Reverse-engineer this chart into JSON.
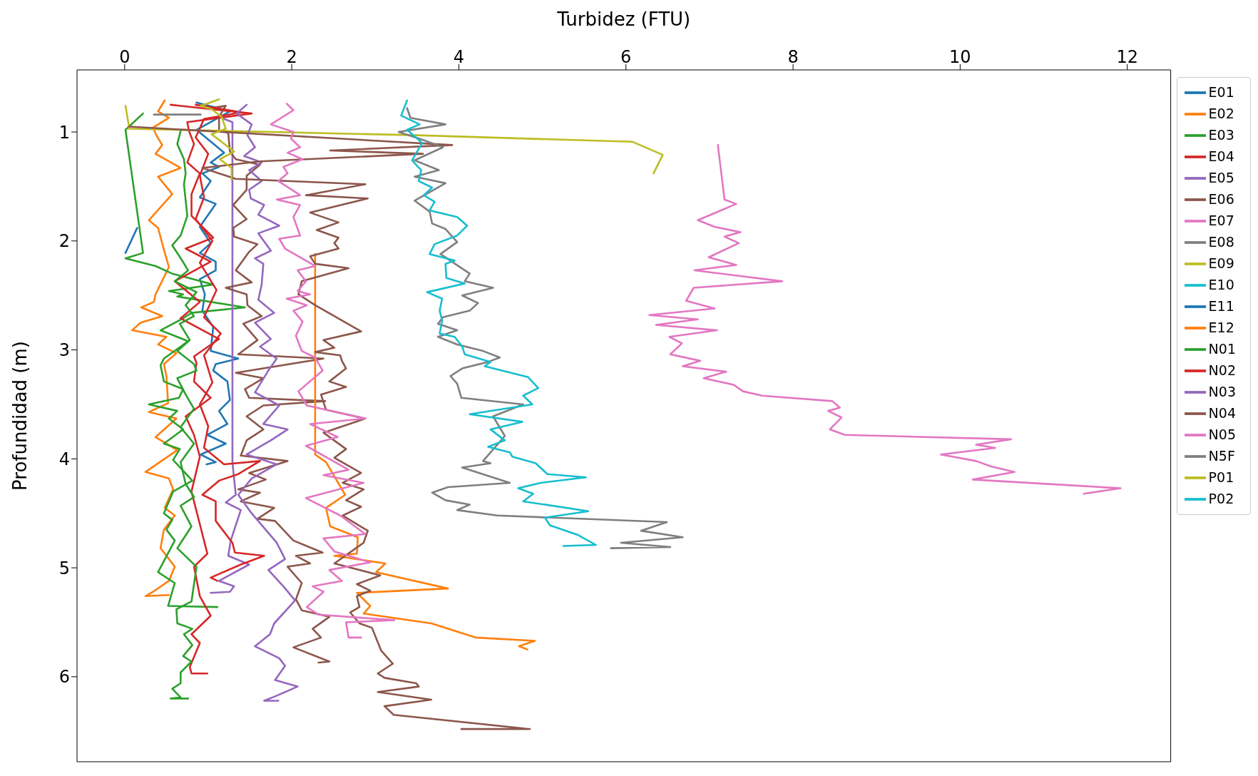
{
  "chart_data": {
    "type": "line",
    "xlabel": "Turbidez (FTU)",
    "ylabel": "Profundidad (m)",
    "xlim": [
      -0.57,
      12.52
    ],
    "xticks": [
      0,
      2,
      4,
      6,
      8,
      10,
      12
    ],
    "ylim": [
      6.78,
      0.43
    ],
    "yticks": [
      1,
      2,
      3,
      4,
      5,
      6
    ],
    "grid": false,
    "legend": "top right",
    "marker": "none",
    "line_style": "solid",
    "series": [
      {
        "name": "E01",
        "color": "#1f77b4",
        "x": [
          0.86,
          1.26,
          0.86,
          1.19,
          1.03,
          1.13,
          0.93,
          1.03,
          0.9,
          1.09,
          0.9,
          1.03,
          0.9,
          1.09,
          1.09,
          0.9,
          0.96,
          0.93,
          1.06,
          1.03,
          1.36,
          1.09,
          1.06,
          1.23,
          1.26,
          1.13,
          1.23,
          0.99,
          1.21,
          0.91,
          1.09,
          0.98
        ],
        "values": [
          0.73,
          0.81,
          0.98,
          1.19,
          1.28,
          1.32,
          1.38,
          1.45,
          1.6,
          1.66,
          1.87,
          2.02,
          2.11,
          2.19,
          2.27,
          2.35,
          2.49,
          2.64,
          2.79,
          3.01,
          3.08,
          3.13,
          3.19,
          3.29,
          3.46,
          3.56,
          3.68,
          3.78,
          3.86,
          3.96,
          4.03,
          4.05
        ]
      },
      {
        "name": "E02",
        "color": "#ff7f0e",
        "x": [
          0.48,
          0.4,
          0.53,
          0.34,
          0.38,
          0.45,
          0.37,
          0.67,
          0.4,
          0.57,
          0.29,
          0.4,
          0.47,
          0.53,
          0.37,
          0.35,
          0.2,
          0.45,
          0.19,
          0.09,
          0.5,
          0.4,
          0.62,
          0.47,
          0.5,
          0.52,
          0.29,
          0.62,
          0.37,
          0.63,
          0.25,
          0.53,
          0.58,
          0.48,
          0.6,
          0.47,
          0.43,
          0.6,
          0.53,
          0.34,
          0.25,
          0.53
        ],
        "values": [
          0.71,
          0.81,
          0.87,
          0.96,
          1.03,
          1.12,
          1.2,
          1.33,
          1.41,
          1.57,
          1.81,
          1.88,
          2.08,
          2.24,
          2.49,
          2.56,
          2.61,
          2.69,
          2.75,
          2.82,
          2.88,
          2.95,
          3.03,
          3.13,
          3.24,
          3.49,
          3.57,
          3.63,
          3.8,
          3.92,
          4.12,
          4.18,
          4.28,
          4.45,
          4.52,
          4.65,
          4.82,
          4.99,
          5.12,
          5.22,
          5.26,
          5.25
        ]
      },
      {
        "name": "E03",
        "color": "#2ca02c",
        "x": [
          0.22,
          0.01,
          0.22,
          0.01,
          0.37,
          0.57,
          1.06,
          0.53,
          0.7,
          0.63,
          1.44,
          0.8,
          0.7,
          0.43,
          0.76,
          0.47,
          0.43,
          0.47,
          0.7,
          0.65,
          0.29,
          0.63,
          0.53,
          0.7,
          0.47,
          0.66,
          0.58,
          0.81,
          0.58,
          0.47,
          0.57,
          0.5,
          0.6,
          0.4,
          0.6,
          0.52,
          1.11
        ],
        "values": [
          0.83,
          0.98,
          2.11,
          2.16,
          2.23,
          2.3,
          2.4,
          2.46,
          2.49,
          2.51,
          2.61,
          2.66,
          2.71,
          2.82,
          2.92,
          3.08,
          3.14,
          3.29,
          3.36,
          3.44,
          3.5,
          3.56,
          3.63,
          3.73,
          3.86,
          3.91,
          4.01,
          4.2,
          4.3,
          4.5,
          4.56,
          4.65,
          4.75,
          5.04,
          5.14,
          5.35,
          5.36
        ]
      },
      {
        "name": "E04",
        "color": "#d62728",
        "x": [
          0.55,
          1.52,
          0.75,
          0.77,
          0.83,
          0.75,
          0.9,
          0.8,
          0.8,
          1.06,
          0.73,
          1.03,
          0.6,
          0.9,
          0.67,
          1.13,
          0.83,
          0.86,
          0.83,
          1.03,
          0.73,
          0.83,
          0.9,
          0.8,
          0.9,
          0.99,
          0.83,
          0.9,
          1.03,
          0.8,
          0.9,
          0.78,
          0.8,
          0.99
        ],
        "values": [
          0.75,
          0.83,
          0.91,
          0.99,
          1.11,
          1.28,
          1.38,
          1.57,
          1.77,
          1.97,
          2.07,
          2.19,
          2.37,
          2.56,
          2.71,
          2.9,
          3.06,
          3.12,
          3.29,
          3.44,
          3.61,
          3.78,
          3.98,
          4.3,
          4.6,
          4.87,
          4.99,
          5.26,
          5.44,
          5.61,
          5.69,
          5.91,
          5.97,
          5.97
        ]
      },
      {
        "name": "E05",
        "color": "#9467bd",
        "x": [
          1.19,
          1.29,
          1.29,
          1.29,
          1.33,
          1.21,
          1.39,
          1.27,
          1.24,
          1.49,
          1.13,
          1.31,
          1.26,
          1.03
        ],
        "values": [
          0.88,
          0.91,
          3.23,
          4.03,
          4.33,
          4.4,
          4.47,
          4.75,
          4.89,
          4.97,
          5.12,
          5.17,
          5.22,
          5.23
        ]
      },
      {
        "name": "E06",
        "color": "#8c564b",
        "x": [
          1.03,
          1.21,
          1.13,
          1.13,
          1.24,
          1.26,
          1.33,
          1.62,
          1.46,
          1.46,
          1.3,
          1.46,
          1.3,
          1.31,
          1.59,
          1.49,
          1.33,
          1.52,
          1.21,
          1.46,
          1.47,
          1.64,
          1.42,
          1.59,
          1.36,
          2.38,
          1.33,
          1.66,
          1.44,
          1.49,
          2.4,
          1.66,
          1.46,
          1.66,
          1.46,
          1.39,
          1.95,
          1.49,
          1.69,
          1.36,
          1.62,
          1.39,
          1.79,
          1.59,
          1.8,
          2.02,
          2.37,
          2.05,
          2.22,
          1.95,
          2.12,
          2.05,
          2.12,
          2.45,
          2.25,
          2.35,
          2.02,
          2.45,
          2.32
        ],
        "values": [
          0.78,
          0.76,
          0.86,
          0.98,
          1.01,
          1.18,
          1.25,
          1.3,
          1.4,
          1.53,
          1.67,
          1.8,
          1.88,
          1.96,
          2.03,
          2.1,
          2.27,
          2.38,
          2.43,
          2.49,
          2.59,
          2.69,
          2.76,
          2.91,
          3.04,
          3.08,
          3.21,
          3.26,
          3.36,
          3.44,
          3.47,
          3.51,
          3.61,
          3.73,
          3.83,
          3.97,
          4.02,
          4.13,
          4.19,
          4.28,
          4.31,
          4.39,
          4.45,
          4.55,
          4.57,
          4.75,
          4.86,
          4.89,
          4.96,
          4.99,
          5.14,
          5.29,
          5.39,
          5.45,
          5.56,
          5.64,
          5.73,
          5.86,
          5.87
        ]
      },
      {
        "name": "E07",
        "color": "#e377c2",
        "x": [
          7.1,
          7.18,
          7.32,
          6.86,
          7.06,
          7.37,
          7.18,
          7.35,
          6.99,
          7.32,
          6.82,
          7.87,
          6.81,
          6.72,
          7.06,
          6.28,
          6.86,
          6.36,
          7.09,
          6.52,
          6.67,
          6.53,
          6.89,
          6.68,
          7.2,
          6.93,
          7.29,
          7.4,
          7.63,
          8.47,
          8.56,
          8.42,
          8.58,
          8.44,
          8.62,
          10.61,
          10.19,
          10.42,
          9.77,
          10.19,
          10.37,
          10.65,
          10.15,
          11.92,
          11.48
        ],
        "values": [
          1.12,
          1.62,
          1.66,
          1.81,
          1.87,
          1.92,
          1.96,
          2.02,
          2.15,
          2.22,
          2.27,
          2.37,
          2.43,
          2.55,
          2.62,
          2.68,
          2.72,
          2.77,
          2.82,
          2.88,
          2.94,
          3.04,
          3.1,
          3.15,
          3.2,
          3.26,
          3.32,
          3.38,
          3.42,
          3.47,
          3.53,
          3.56,
          3.62,
          3.73,
          3.78,
          3.82,
          3.87,
          3.9,
          3.96,
          4.02,
          4.07,
          4.12,
          4.19,
          4.27,
          4.32
        ]
      },
      {
        "name": "E08",
        "color": "#7f7f7f",
        "x": [
          0.35,
          0.91
        ],
        "values": [
          0.84,
          0.84
        ]
      },
      {
        "name": "E09",
        "color": "#bcbd22",
        "x": [
          0.01,
          0.05,
          0.05,
          3.5,
          6.08,
          6.44,
          6.33
        ],
        "values": [
          0.76,
          0.94,
          0.97,
          1.03,
          1.09,
          1.21,
          1.38
        ]
      },
      {
        "name": "E10",
        "color": "#17becf"
      },
      {
        "name": "E11",
        "color": "#1f77b4",
        "x": [
          0.15,
          0.01
        ],
        "values": [
          1.88,
          2.11
        ]
      },
      {
        "name": "E12",
        "color": "#ff7f0e",
        "x": [
          2.28,
          2.28,
          2.41,
          2.64,
          2.41,
          2.46,
          2.79,
          2.78,
          2.51,
          3.12,
          3.01,
          3.87,
          2.78,
          2.94,
          2.86,
          3.67,
          4.2,
          4.91,
          4.72,
          4.82
        ],
        "values": [
          2.12,
          3.96,
          4.03,
          4.33,
          4.45,
          4.62,
          4.72,
          4.87,
          4.89,
          4.96,
          5.04,
          5.19,
          5.23,
          5.35,
          5.42,
          5.51,
          5.64,
          5.67,
          5.72,
          5.75
        ]
      },
      {
        "name": "N01",
        "color": "#2ca02c",
        "x": [
          0.67,
          0.63,
          0.71,
          0.73,
          0.71,
          0.75,
          0.67,
          0.57,
          0.68,
          0.76,
          0.6,
          0.86,
          0.73,
          0.83,
          0.66,
          0.78,
          0.63,
          0.83,
          0.86,
          0.63,
          0.73,
          0.83,
          0.67,
          0.83,
          0.67,
          0.73,
          0.83,
          0.67,
          0.8,
          0.63,
          0.86,
          0.8,
          0.62,
          0.63,
          0.81,
          0.71,
          0.81,
          0.7,
          0.8,
          0.67,
          0.67,
          0.57,
          0.67,
          0.55,
          0.76
        ],
        "values": [
          0.99,
          1.11,
          1.25,
          1.38,
          1.48,
          1.77,
          1.95,
          2.04,
          2.17,
          2.27,
          2.37,
          2.47,
          2.59,
          2.69,
          2.76,
          2.91,
          3.01,
          3.13,
          3.19,
          3.26,
          3.41,
          3.54,
          3.71,
          3.86,
          4.03,
          4.23,
          4.35,
          4.43,
          4.62,
          4.82,
          4.99,
          5.31,
          5.38,
          5.51,
          5.56,
          5.61,
          5.71,
          5.81,
          5.86,
          5.96,
          6.06,
          6.11,
          6.19,
          6.2,
          6.2
        ]
      },
      {
        "name": "N02",
        "color": "#d62728",
        "x": [
          0.85,
          1.4,
          0.95,
          0.85,
          1.0,
          0.9,
          0.95,
          0.85,
          1.05,
          0.9,
          1.1,
          0.95,
          1.15,
          0.95,
          1.05,
          0.9,
          1.0,
          0.95,
          1.19,
          1.62,
          1.36,
          1.13,
          0.93,
          1.09,
          1.09,
          1.29,
          1.32,
          1.67,
          1.39,
          1.03,
          1.11
        ],
        "values": [
          0.75,
          0.82,
          0.88,
          1.05,
          1.2,
          1.4,
          1.6,
          1.8,
          2.0,
          2.2,
          2.45,
          2.7,
          2.85,
          3.05,
          3.3,
          3.5,
          3.7,
          3.9,
          4.05,
          4.02,
          4.14,
          4.2,
          4.33,
          4.39,
          4.57,
          4.77,
          4.86,
          4.89,
          4.97,
          5.09,
          5.12
        ]
      },
      {
        "name": "N03",
        "color": "#9467bd",
        "x": [
          1.46,
          1.34,
          1.52,
          1.47,
          1.56,
          1.43,
          1.64,
          1.49,
          1.64,
          1.49,
          1.51,
          1.67,
          1.6,
          1.85,
          1.6,
          1.75,
          1.56,
          1.66,
          1.64,
          1.6,
          1.79,
          1.56,
          1.75,
          1.62,
          1.82,
          1.72,
          1.56,
          1.85,
          1.66,
          1.95,
          1.75,
          1.46,
          1.82,
          1.52,
          1.36,
          1.52,
          1.82,
          1.92,
          1.72,
          1.9,
          2.04,
          1.79,
          1.74,
          1.56,
          1.85,
          1.92,
          1.8,
          2.07,
          1.8,
          1.67,
          1.84
        ],
        "values": [
          0.75,
          0.83,
          0.93,
          1.03,
          1.14,
          1.22,
          1.28,
          1.35,
          1.45,
          1.53,
          1.61,
          1.67,
          1.76,
          1.86,
          1.93,
          2.09,
          2.16,
          2.21,
          2.4,
          2.54,
          2.66,
          2.75,
          2.9,
          2.97,
          3.08,
          3.19,
          3.39,
          3.51,
          3.68,
          3.73,
          3.83,
          3.96,
          4.05,
          4.18,
          4.33,
          4.5,
          4.77,
          4.92,
          5.02,
          5.17,
          5.3,
          5.51,
          5.61,
          5.72,
          5.83,
          5.9,
          6.03,
          6.09,
          6.18,
          6.22,
          6.22
        ]
      },
      {
        "name": "N04",
        "color": "#8c564b",
        "x": [
          0.05,
          3.92,
          2.46,
          3.57,
          1.62,
          0.93,
          1.33,
          2.88,
          2.17,
          2.91,
          2.22,
          2.56,
          2.3,
          2.56,
          2.51,
          2.56,
          2.22,
          2.28,
          2.68,
          2.12,
          2.08,
          2.28,
          2.83,
          2.38,
          2.51,
          2.28,
          2.58,
          2.6,
          2.65,
          2.45,
          2.65,
          2.35,
          2.41,
          2.88,
          2.38,
          2.65,
          2.51,
          2.83,
          2.61,
          2.86,
          2.65,
          2.83,
          2.61,
          2.91,
          2.86,
          2.51,
          3.06,
          2.78,
          2.94,
          2.78,
          2.81,
          2.7,
          2.81,
          2.96,
          3.07,
          3.21,
          3.03,
          3.11,
          3.49,
          3.52,
          3.03,
          3.67,
          3.11,
          3.22,
          4.85,
          4.03
        ],
        "values": [
          0.95,
          1.12,
          1.17,
          1.2,
          1.27,
          1.33,
          1.43,
          1.48,
          1.58,
          1.61,
          1.74,
          1.83,
          1.9,
          1.97,
          2.02,
          2.07,
          2.14,
          2.21,
          2.25,
          2.37,
          2.49,
          2.59,
          2.83,
          2.91,
          2.98,
          3.02,
          3.05,
          3.1,
          3.17,
          3.29,
          3.34,
          3.41,
          3.55,
          3.63,
          3.76,
          3.91,
          3.99,
          4.13,
          4.22,
          4.28,
          4.38,
          4.44,
          4.52,
          4.66,
          4.77,
          4.96,
          5.07,
          5.15,
          5.21,
          5.26,
          5.36,
          5.41,
          5.51,
          5.55,
          5.76,
          5.88,
          5.97,
          6.01,
          6.06,
          6.09,
          6.14,
          6.21,
          6.27,
          6.35,
          6.48,
          6.48
        ]
      },
      {
        "name": "N05",
        "color": "#e377c2",
        "x": [
          1.94,
          2.02,
          1.75,
          2.02,
          1.99,
          2.1,
          1.95,
          2.13,
          1.9,
          1.95,
          1.84,
          2.1,
          1.82,
          2.1,
          2.02,
          2.1,
          1.85,
          1.92,
          2.28,
          2.07,
          2.17,
          2.07,
          2.22,
          1.94,
          2.18,
          2.02,
          2.13,
          2.05,
          2.12,
          2.28,
          2.37,
          2.08,
          2.18,
          2.88,
          2.22,
          2.55,
          2.17,
          2.68,
          2.38,
          2.86,
          2.17,
          2.58,
          2.88,
          2.38,
          2.51,
          2.94,
          2.45,
          2.6,
          2.25,
          2.38,
          2.18,
          2.32,
          3.23,
          2.65,
          2.68,
          2.83
        ],
        "values": [
          0.74,
          0.8,
          0.93,
          1.0,
          1.06,
          1.14,
          1.19,
          1.25,
          1.32,
          1.38,
          1.45,
          1.58,
          1.62,
          1.67,
          1.78,
          1.95,
          1.98,
          2.07,
          2.23,
          2.27,
          2.37,
          2.46,
          2.49,
          2.53,
          2.59,
          2.64,
          2.74,
          2.87,
          3.01,
          3.07,
          3.19,
          3.38,
          3.51,
          3.63,
          3.68,
          3.8,
          3.88,
          4.1,
          4.15,
          4.22,
          4.36,
          4.52,
          4.69,
          4.73,
          4.85,
          4.95,
          5.02,
          5.12,
          5.17,
          5.22,
          5.36,
          5.43,
          5.48,
          5.5,
          5.64,
          5.64
        ]
      },
      {
        "name": "N5F",
        "color": "#7f7f7f",
        "x": [
          3.38,
          3.42,
          3.84,
          3.28,
          3.56,
          3.81,
          3.47,
          3.76,
          3.47,
          3.84,
          3.47,
          3.65,
          3.68,
          3.84,
          3.98,
          3.78,
          4.13,
          4.07,
          4.41,
          4.04,
          4.23,
          4.13,
          3.81,
          3.75,
          3.98,
          3.75,
          3.98,
          4.29,
          4.49,
          4.35,
          4.04,
          3.9,
          3.98,
          4.03,
          4.77,
          4.41,
          4.55,
          4.29,
          4.38,
          4.04,
          4.61,
          3.87,
          3.68,
          3.84,
          4.13,
          3.98,
          4.46,
          6.49,
          6.18,
          6.68,
          5.94,
          6.53,
          5.82
        ],
        "values": [
          0.78,
          0.87,
          0.93,
          1.0,
          1.07,
          1.14,
          1.26,
          1.35,
          1.41,
          1.47,
          1.63,
          1.73,
          1.84,
          1.89,
          2.01,
          2.12,
          2.3,
          2.37,
          2.43,
          2.5,
          2.57,
          2.64,
          2.7,
          2.76,
          2.82,
          2.88,
          2.95,
          3.01,
          3.07,
          3.11,
          3.17,
          3.24,
          3.31,
          3.44,
          3.5,
          3.61,
          3.79,
          4.02,
          4.04,
          4.08,
          4.22,
          4.26,
          4.31,
          4.38,
          4.42,
          4.47,
          4.52,
          4.58,
          4.66,
          4.72,
          4.77,
          4.81,
          4.82
        ]
      },
      {
        "name": "P01",
        "color": "#bcbd22",
        "x": [
          1.13,
          0.91,
          1.04,
          1.16,
          1.21,
          1.04,
          1.16,
          1.31,
          1.14,
          1.28,
          1.28
        ],
        "values": [
          0.7,
          0.76,
          0.79,
          0.86,
          0.97,
          1.02,
          1.09,
          1.18,
          1.25,
          1.33,
          1.44
        ]
      },
      {
        "name": "P02",
        "color": "#17becf",
        "x": [
          3.38,
          3.31,
          3.53,
          3.38,
          3.56,
          3.44,
          3.55,
          3.52,
          3.68,
          3.58,
          3.71,
          3.65,
          3.98,
          4.1,
          3.98,
          3.71,
          3.65,
          3.95,
          3.84,
          3.85,
          4.07,
          3.62,
          3.8,
          3.77,
          3.8,
          3.77,
          3.95,
          4.04,
          4.07,
          4.38,
          4.31,
          4.83,
          4.95,
          4.77,
          4.88,
          4.13,
          4.76,
          4.38,
          4.55,
          4.35,
          4.61,
          4.64,
          4.92,
          5.06,
          5.52,
          4.98,
          4.71,
          4.89,
          4.77,
          5.55,
          5.03,
          5.09,
          5.43,
          5.64,
          5.25
        ],
        "values": [
          0.71,
          0.85,
          0.93,
          0.98,
          1.1,
          1.26,
          1.35,
          1.45,
          1.51,
          1.58,
          1.64,
          1.72,
          1.78,
          1.86,
          1.95,
          2.03,
          2.12,
          2.18,
          2.21,
          2.34,
          2.39,
          2.47,
          2.53,
          2.64,
          2.73,
          2.85,
          2.88,
          2.97,
          3.04,
          3.11,
          3.15,
          3.25,
          3.35,
          3.42,
          3.5,
          3.59,
          3.66,
          3.73,
          3.83,
          3.89,
          3.94,
          3.98,
          4.04,
          4.14,
          4.17,
          4.22,
          4.27,
          4.32,
          4.39,
          4.48,
          4.54,
          4.61,
          4.7,
          4.79,
          4.8
        ]
      }
    ]
  }
}
